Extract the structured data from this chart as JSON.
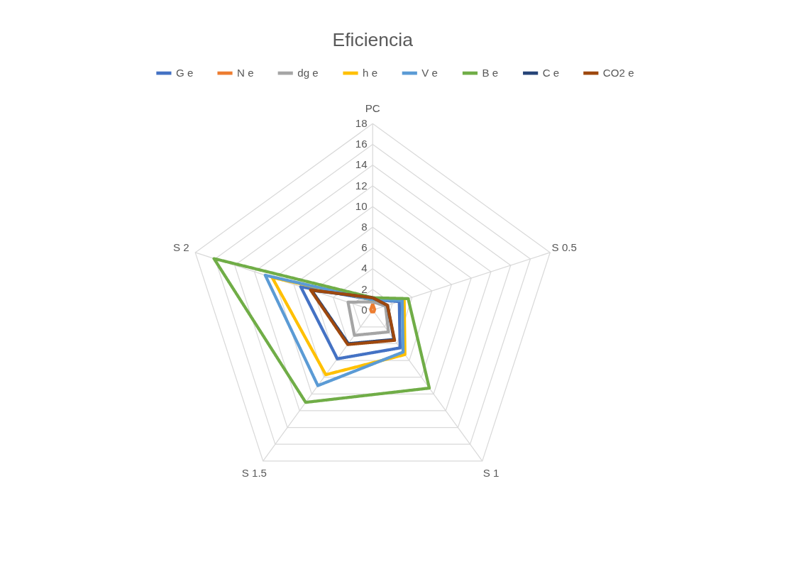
{
  "chart_data": {
    "type": "radar",
    "title": "Eficiencia",
    "categories": [
      "PC",
      "S 0.5",
      "S 1",
      "S 1.5",
      "S 2"
    ],
    "ylim": [
      0,
      18
    ],
    "yticks": [
      0,
      2,
      4,
      6,
      8,
      10,
      12,
      14,
      16,
      18
    ],
    "grid": true,
    "legend": "top",
    "line_style": "solid",
    "marker": "none",
    "series": [
      {
        "name": "G e",
        "color": "#4472c4",
        "values": [
          1,
          2.7,
          4.5,
          5.8,
          7.3
        ]
      },
      {
        "name": "N e",
        "color": "#ed7d31",
        "values": [
          0.6,
          0.2,
          0.2,
          0.2,
          0.2
        ]
      },
      {
        "name": "dg e",
        "color": "#a5a5a5",
        "values": [
          0.8,
          1.3,
          2.6,
          3,
          2.5
        ]
      },
      {
        "name": "h e",
        "color": "#ffc000",
        "values": [
          1,
          3.2,
          5.3,
          7.7,
          10.2
        ]
      },
      {
        "name": "V e",
        "color": "#5b9bd5",
        "values": [
          1,
          3,
          5,
          9,
          10.9
        ]
      },
      {
        "name": "B e",
        "color": "#70ad47",
        "values": [
          1.2,
          3.6,
          9.3,
          11,
          16.1
        ]
      },
      {
        "name": "C e",
        "color": "#264478",
        "values": [
          1.2,
          1.5,
          3.5,
          4,
          6.2
        ]
      },
      {
        "name": "CO2 e",
        "color": "#9e480e",
        "values": [
          1.2,
          1.5,
          3.6,
          4.1,
          6.3
        ]
      }
    ]
  }
}
